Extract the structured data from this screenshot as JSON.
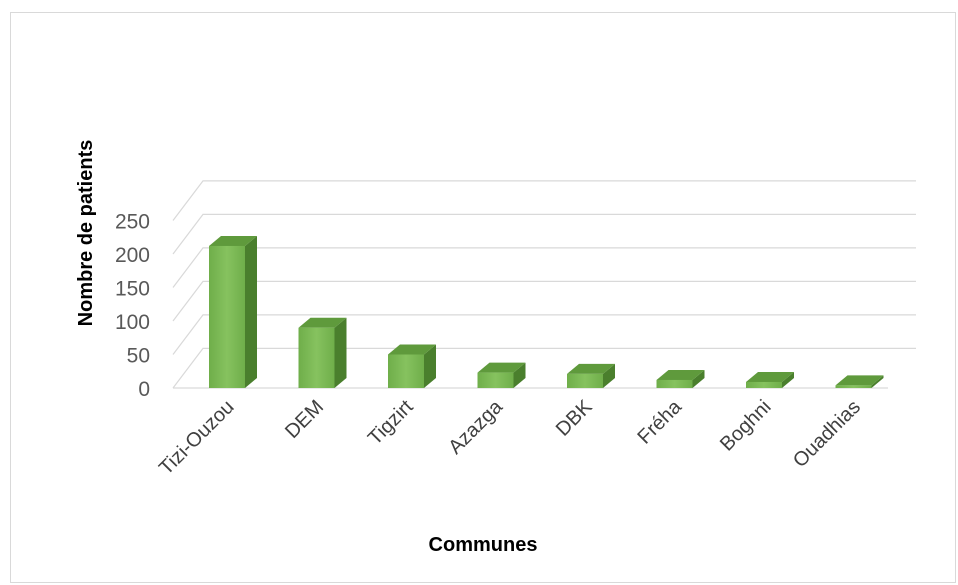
{
  "chart_data": {
    "type": "bar",
    "style": "3d-column",
    "categories": [
      "Tizi-Ouzou",
      "DEM",
      "Tigzirt",
      "Azazga",
      "DBK",
      "Fréha",
      "Boghni",
      "Ouadhias"
    ],
    "values": [
      212,
      90,
      50,
      23,
      21,
      12,
      9,
      4
    ],
    "title": "",
    "xlabel": "Communes",
    "ylabel": "Nombre de patients",
    "ylim": [
      0,
      250
    ],
    "yticks": [
      0,
      50,
      100,
      150,
      200,
      250
    ],
    "grid": true,
    "legend": "none",
    "colors": {
      "front": "#76b852",
      "front_light": "#8fcc68",
      "side": "#4a7f2d",
      "top": "#5f9a3c",
      "grid": "#d9d9d9"
    }
  }
}
